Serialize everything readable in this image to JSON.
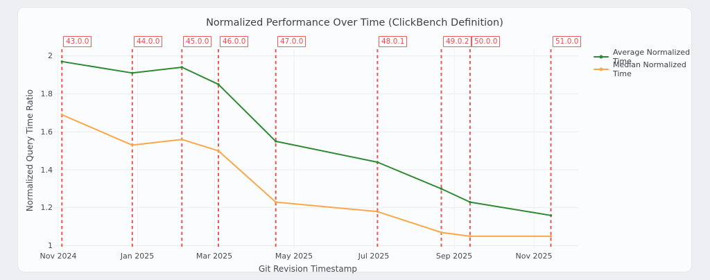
{
  "chart_data": {
    "type": "line",
    "title": "Normalized Performance Over Time (ClickBench Definition)",
    "xlabel": "Git Revision Timestamp",
    "ylabel": "Normalized Query Time Ratio",
    "grid": true,
    "legend_position": "outside-right-top",
    "x_range": [
      "2024-10-29",
      "2025-12-05"
    ],
    "y_range": [
      0.984,
      2.035
    ],
    "y_ticks": [
      {
        "value": 1,
        "label": "1"
      },
      {
        "value": 1.2,
        "label": "1.2"
      },
      {
        "value": 1.4,
        "label": "1.4"
      },
      {
        "value": 1.6,
        "label": "1.6"
      },
      {
        "value": 1.8,
        "label": "1.8"
      },
      {
        "value": 2,
        "label": "2"
      }
    ],
    "x_ticks": [
      {
        "date": "2024-11-01",
        "label": "Nov 2024"
      },
      {
        "date": "2025-01-01",
        "label": "Jan 2025"
      },
      {
        "date": "2025-03-01",
        "label": "Mar 2025"
      },
      {
        "date": "2025-05-01",
        "label": "May 2025"
      },
      {
        "date": "2025-07-01",
        "label": "Jul 2025"
      },
      {
        "date": "2025-09-01",
        "label": "Sep 2025"
      },
      {
        "date": "2025-11-01",
        "label": "Nov 2025"
      }
    ],
    "x": [
      "2024-11-04",
      "2024-12-28",
      "2025-02-04",
      "2025-03-04",
      "2025-04-17",
      "2025-07-04",
      "2025-08-22",
      "2025-09-13",
      "2025-11-14"
    ],
    "release_versions": [
      "43.0.0",
      "44.0.0",
      "45.0.0",
      "46.0.0",
      "47.0.0",
      "48.0.1",
      "49.0.2",
      "50.0.0",
      "51.0.0"
    ],
    "series": [
      {
        "name": "Average Normalized Time",
        "color": "#2d8a30",
        "values": [
          1.97,
          1.91,
          1.94,
          1.85,
          1.55,
          1.44,
          1.3,
          1.23,
          1.16
        ]
      },
      {
        "name": "Median Normalized Time",
        "color": "#fca747",
        "values": [
          1.69,
          1.53,
          1.56,
          1.5,
          1.23,
          1.18,
          1.07,
          1.05,
          1.05
        ]
      }
    ],
    "release_style": {
      "line_color": "#f0534f",
      "label_color": "#e64c4c",
      "label_border": "#ef5b58",
      "label_bg": "#ffffff"
    },
    "grid_color_h": "#e9ebee",
    "grid_color_v": "#eef0f3"
  }
}
